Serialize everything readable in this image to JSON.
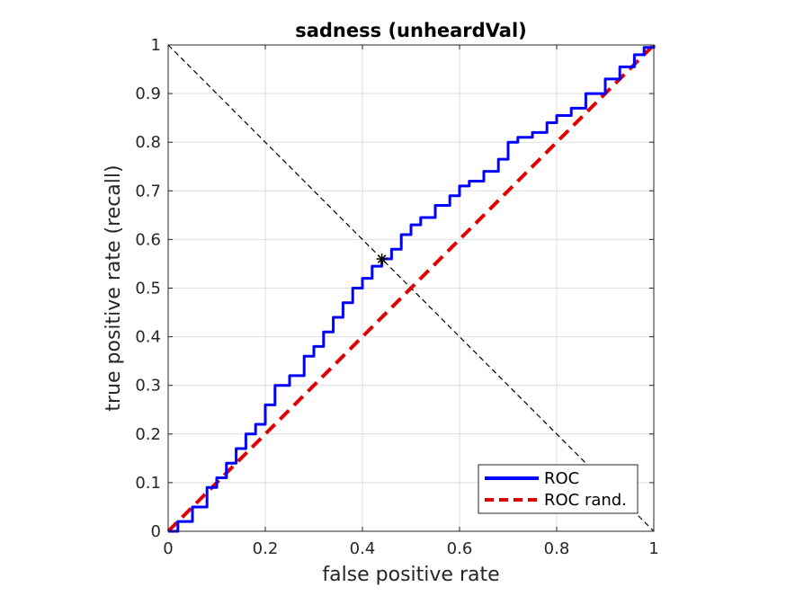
{
  "chart_data": {
    "type": "line",
    "title": "sadness (unheardVal)",
    "xlabel": "false positive rate",
    "ylabel": "true positive rate (recall)",
    "xlim": [
      0,
      1
    ],
    "ylim": [
      0,
      1
    ],
    "grid": true,
    "legend_position": "bottom-right",
    "xticks": [
      "0",
      "0.2",
      "0.4",
      "0.6",
      "0.8",
      "1"
    ],
    "yticks": [
      "0",
      "0.1",
      "0.2",
      "0.3",
      "0.4",
      "0.5",
      "0.6",
      "0.7",
      "0.8",
      "0.9",
      "1"
    ],
    "series": [
      {
        "name": "ROC",
        "color": "#0000ff",
        "style": "solid",
        "x": [
          0,
          0.02,
          0.05,
          0.08,
          0.1,
          0.12,
          0.14,
          0.16,
          0.18,
          0.2,
          0.22,
          0.25,
          0.28,
          0.3,
          0.32,
          0.34,
          0.36,
          0.38,
          0.4,
          0.42,
          0.44,
          0.46,
          0.48,
          0.5,
          0.52,
          0.55,
          0.58,
          0.6,
          0.62,
          0.65,
          0.68,
          0.7,
          0.72,
          0.75,
          0.78,
          0.8,
          0.83,
          0.86,
          0.9,
          0.93,
          0.96,
          0.98,
          1
        ],
        "y": [
          0,
          0.02,
          0.05,
          0.09,
          0.11,
          0.14,
          0.17,
          0.2,
          0.22,
          0.26,
          0.3,
          0.32,
          0.36,
          0.38,
          0.41,
          0.44,
          0.47,
          0.5,
          0.52,
          0.545,
          0.56,
          0.58,
          0.61,
          0.63,
          0.645,
          0.67,
          0.69,
          0.71,
          0.72,
          0.74,
          0.765,
          0.8,
          0.81,
          0.82,
          0.84,
          0.855,
          0.87,
          0.9,
          0.93,
          0.955,
          0.98,
          0.995,
          1
        ]
      },
      {
        "name": "ROC rand.",
        "color": "#e00000",
        "style": "dashed",
        "x": [
          0,
          1
        ],
        "y": [
          0,
          1
        ]
      }
    ],
    "reference_line": {
      "color": "#000000",
      "style": "dashed",
      "x": [
        0,
        1
      ],
      "y": [
        1,
        0
      ]
    },
    "marker": {
      "symbol": "asterisk",
      "color": "#000000",
      "x": 0.44,
      "y": 0.56
    }
  }
}
